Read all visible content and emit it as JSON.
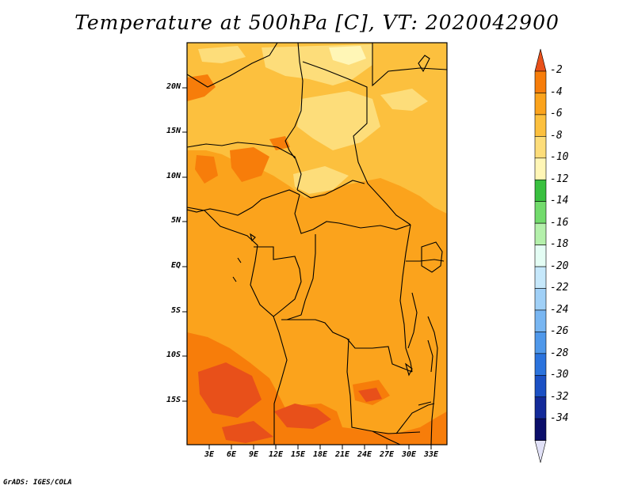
{
  "title": "Temperature at 500hPa [C], VT: 2020042900",
  "credit": "GrADS: IGES/COLA",
  "lat_labels": [
    "20N",
    "15N",
    "10N",
    "5N",
    "EQ",
    "5S",
    "10S",
    "15S"
  ],
  "lon_labels": [
    "3E",
    "6E",
    "9E",
    "12E",
    "15E",
    "18E",
    "21E",
    "24E",
    "27E",
    "30E",
    "33E"
  ],
  "colorbar": {
    "labels": [
      "-2",
      "-4",
      "-6",
      "-8",
      "-10",
      "-12",
      "-14",
      "-16",
      "-18",
      "-20",
      "-22",
      "-24",
      "-26",
      "-28",
      "-30",
      "-32",
      "-34"
    ],
    "colors": [
      "#e8501a",
      "#f77d0a",
      "#fba31c",
      "#fcc03e",
      "#fddd7a",
      "#fff6b6",
      "#39c03f",
      "#72db6c",
      "#b4f0ab",
      "#e4fdf4",
      "#c6e8fb",
      "#a0d0f7",
      "#78b6f2",
      "#4f98ea",
      "#2b73dd",
      "#1b50c4",
      "#132a99",
      "#0b0e6a"
    ],
    "low_end_color": "#e1e1f7"
  }
}
